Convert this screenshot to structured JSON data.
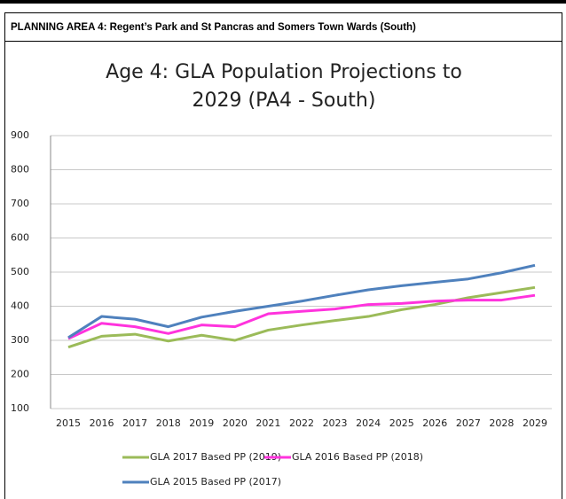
{
  "header": {
    "title": "PLANNING AREA 4: Regent’s Park and St Pancras and Somers Town Wards (South)"
  },
  "chart_data": {
    "type": "line",
    "title": [
      "Age 4: GLA Population Projections to",
      "2029 (PA4 - South)"
    ],
    "categories": [
      "2015",
      "2016",
      "2017",
      "2018",
      "2019",
      "2020",
      "2021",
      "2022",
      "2023",
      "2024",
      "2025",
      "2026",
      "2027",
      "2028",
      "2029"
    ],
    "series": [
      {
        "name": "GLA 2017 Based PP (2019)",
        "color": "#9bbb59",
        "values": [
          280,
          312,
          318,
          298,
          315,
          300,
          330,
          345,
          358,
          370,
          390,
          405,
          425,
          440,
          455
        ]
      },
      {
        "name": "GLA 2016 Based PP (2018)",
        "color": "#ff33dd",
        "values": [
          305,
          350,
          340,
          320,
          345,
          340,
          378,
          385,
          392,
          405,
          408,
          415,
          418,
          418,
          432
        ]
      },
      {
        "name": "GLA 2015 Based PP (2017)",
        "color": "#4f81bd",
        "values": [
          308,
          370,
          362,
          340,
          368,
          385,
          400,
          415,
          432,
          448,
          460,
          470,
          480,
          498,
          520
        ]
      }
    ],
    "ylim": [
      100,
      900
    ],
    "yticks": [
      100,
      200,
      300,
      400,
      500,
      600,
      700,
      800,
      900
    ],
    "grid": true,
    "legend": "bottom"
  }
}
